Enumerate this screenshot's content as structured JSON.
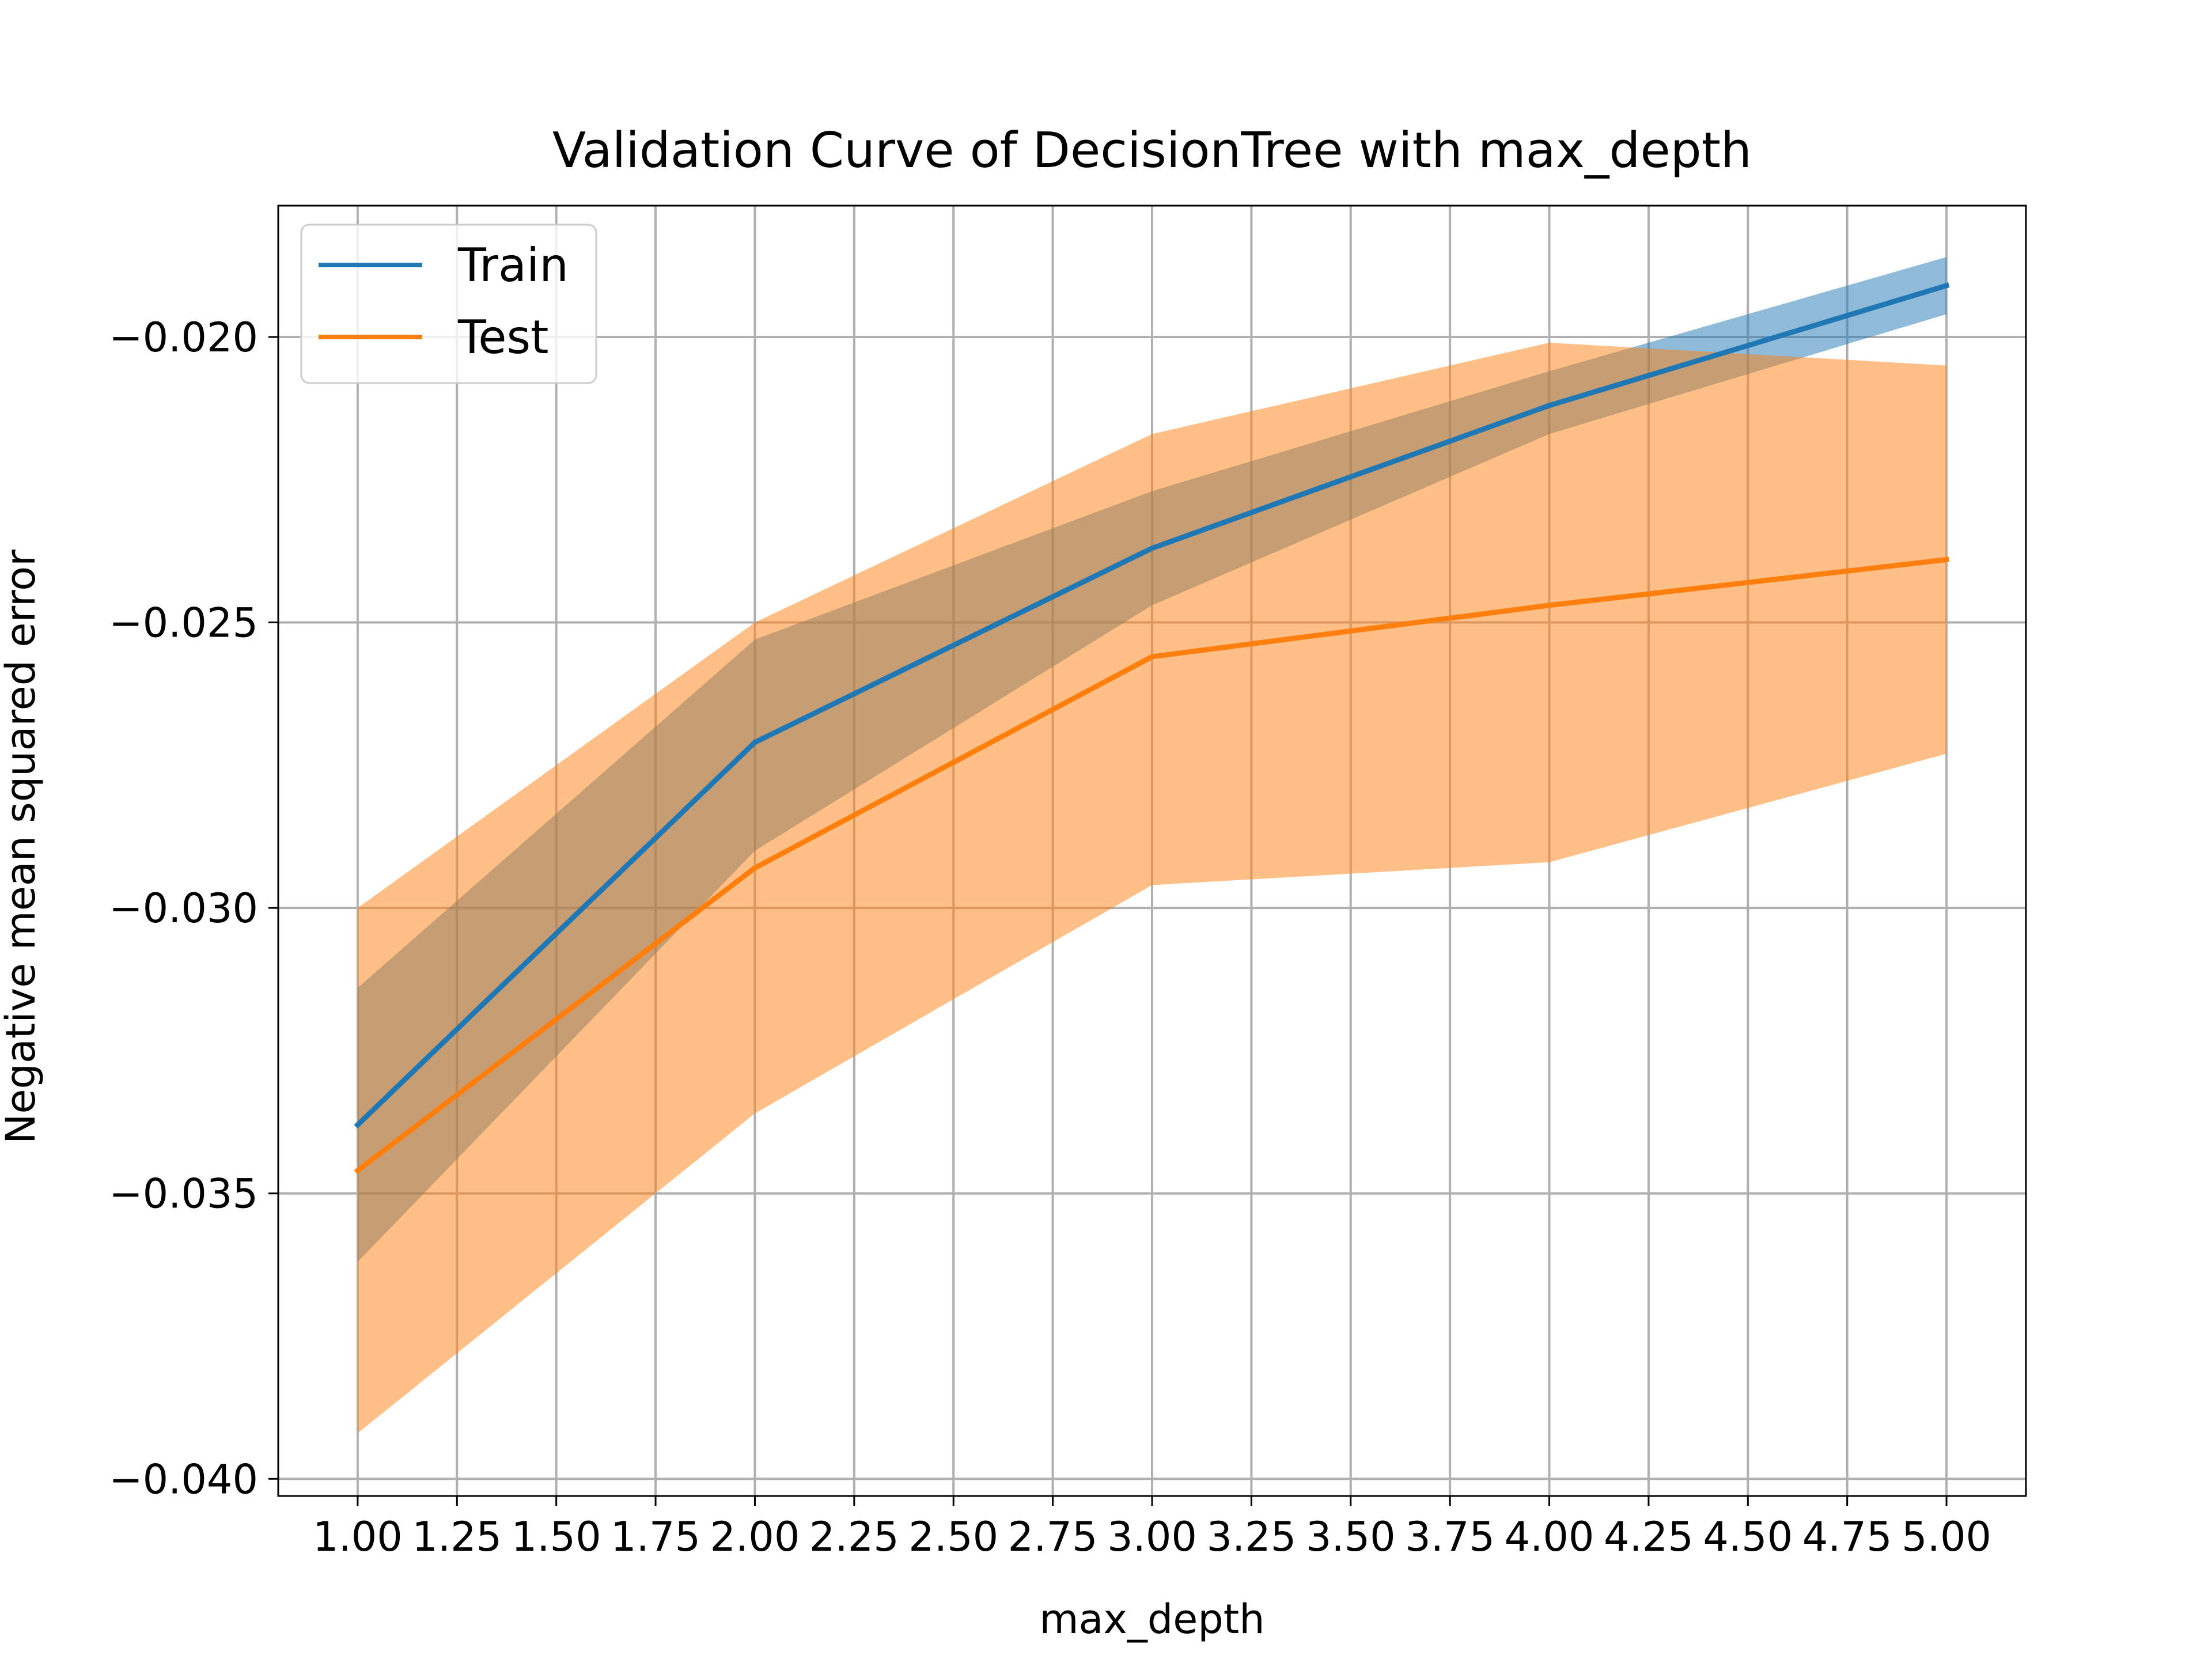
{
  "chart_data": {
    "type": "line",
    "title": "Validation Curve of DecisionTree with max_depth",
    "xlabel": "max_depth",
    "ylabel": "Negative mean squared error",
    "xlim": [
      0.8,
      5.2
    ],
    "ylim": [
      -0.0403,
      -0.0177
    ],
    "x_ticks": [
      1.0,
      1.25,
      1.5,
      1.75,
      2.0,
      2.25,
      2.5,
      2.75,
      3.0,
      3.25,
      3.5,
      3.75,
      4.0,
      4.25,
      4.5,
      4.75,
      5.0
    ],
    "x_tick_labels": [
      "1.00",
      "1.25",
      "1.50",
      "1.75",
      "2.00",
      "2.25",
      "2.50",
      "2.75",
      "3.00",
      "3.25",
      "3.50",
      "3.75",
      "4.00",
      "4.25",
      "4.50",
      "4.75",
      "5.00"
    ],
    "y_ticks": [
      -0.04,
      -0.035,
      -0.03,
      -0.025,
      -0.02
    ],
    "y_tick_labels": [
      "−0.040",
      "−0.035",
      "−0.030",
      "−0.025",
      "−0.020"
    ],
    "grid": true,
    "legend_position": "top-left",
    "x": [
      1,
      2,
      3,
      4,
      5
    ],
    "series": [
      {
        "name": "Train",
        "color": "#1f77b4",
        "band_color": "#1f77b4",
        "values": [
          -0.0338,
          -0.0271,
          -0.0237,
          -0.0212,
          -0.0191
        ],
        "lower": [
          -0.0362,
          -0.029,
          -0.0247,
          -0.0217,
          -0.0196
        ],
        "upper": [
          -0.0314,
          -0.0253,
          -0.0227,
          -0.0206,
          -0.0186
        ]
      },
      {
        "name": "Test",
        "color": "#ff7f0e",
        "band_color": "#ff7f0e",
        "values": [
          -0.0346,
          -0.0293,
          -0.0256,
          -0.0247,
          -0.0239
        ],
        "lower": [
          -0.0392,
          -0.0336,
          -0.0296,
          -0.0292,
          -0.0273
        ],
        "upper": [
          -0.03,
          -0.025,
          -0.0217,
          -0.0201,
          -0.0205
        ]
      }
    ]
  }
}
